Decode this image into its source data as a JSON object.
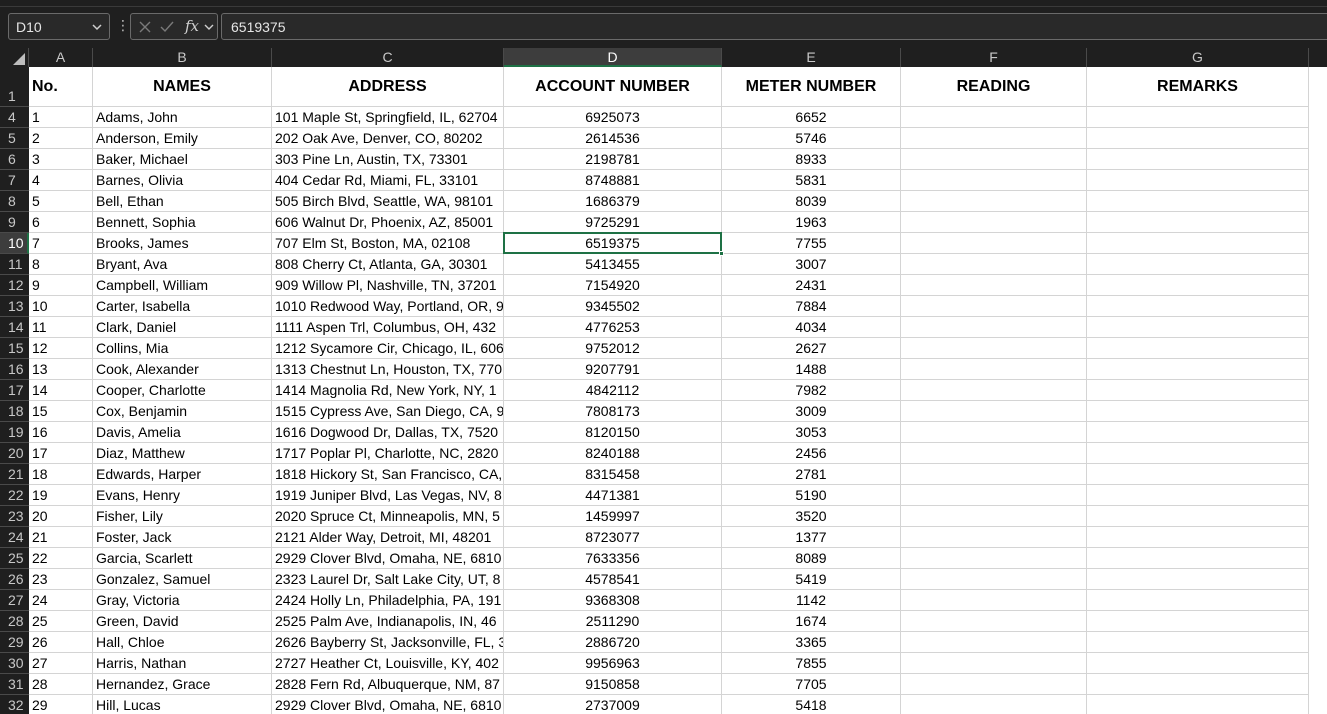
{
  "formula_bar": {
    "name_box": "D10",
    "formula_value": "6519375",
    "fx_label": "fx"
  },
  "columns": [
    "A",
    "B",
    "C",
    "D",
    "E",
    "F",
    "G"
  ],
  "header_row": {
    "row_number": "1",
    "cells": [
      "No.",
      "NAMES",
      "ADDRESS",
      "ACCOUNT NUMBER",
      "METER NUMBER",
      "READING",
      "REMARKS"
    ]
  },
  "rows": [
    {
      "rn": "4",
      "cells": [
        "1",
        "Adams, John",
        "101 Maple St, Springfield, IL, 62704",
        "6925073",
        "6652",
        "",
        ""
      ]
    },
    {
      "rn": "5",
      "cells": [
        "2",
        "Anderson, Emily",
        "202 Oak Ave, Denver, CO, 80202",
        "2614536",
        "5746",
        "",
        ""
      ]
    },
    {
      "rn": "6",
      "cells": [
        "3",
        "Baker, Michael",
        "303 Pine Ln, Austin, TX, 73301",
        "2198781",
        "8933",
        "",
        ""
      ]
    },
    {
      "rn": "7",
      "cells": [
        "4",
        "Barnes, Olivia",
        "404 Cedar Rd, Miami, FL, 33101",
        "8748881",
        "5831",
        "",
        ""
      ]
    },
    {
      "rn": "8",
      "cells": [
        "5",
        "Bell, Ethan",
        "505 Birch Blvd, Seattle, WA, 98101",
        "1686379",
        "8039",
        "",
        ""
      ]
    },
    {
      "rn": "9",
      "cells": [
        "6",
        "Bennett, Sophia",
        "606 Walnut Dr, Phoenix, AZ, 85001",
        "9725291",
        "1963",
        "",
        ""
      ]
    },
    {
      "rn": "10",
      "cells": [
        "7",
        "Brooks, James",
        "707 Elm St, Boston, MA, 02108",
        "6519375",
        "7755",
        "",
        ""
      ]
    },
    {
      "rn": "11",
      "cells": [
        "8",
        "Bryant, Ava",
        "808 Cherry Ct, Atlanta, GA, 30301",
        "5413455",
        "3007",
        "",
        ""
      ]
    },
    {
      "rn": "12",
      "cells": [
        "9",
        "Campbell, William",
        "909 Willow Pl, Nashville, TN, 37201",
        "7154920",
        "2431",
        "",
        ""
      ]
    },
    {
      "rn": "13",
      "cells": [
        "10",
        "Carter, Isabella",
        "1010 Redwood Way, Portland, OR, 9",
        "9345502",
        "7884",
        "",
        ""
      ]
    },
    {
      "rn": "14",
      "cells": [
        "11",
        "Clark, Daniel",
        "1111 Aspen Trl, Columbus, OH, 432",
        "4776253",
        "4034",
        "",
        ""
      ]
    },
    {
      "rn": "15",
      "cells": [
        "12",
        "Collins, Mia",
        "1212 Sycamore Cir, Chicago, IL, 606",
        "9752012",
        "2627",
        "",
        ""
      ]
    },
    {
      "rn": "16",
      "cells": [
        "13",
        "Cook, Alexander",
        "1313 Chestnut Ln, Houston, TX, 770",
        "9207791",
        "1488",
        "",
        ""
      ]
    },
    {
      "rn": "17",
      "cells": [
        "14",
        "Cooper, Charlotte",
        "1414 Magnolia Rd, New York, NY, 1",
        "4842112",
        "7982",
        "",
        ""
      ]
    },
    {
      "rn": "18",
      "cells": [
        "15",
        "Cox, Benjamin",
        "1515 Cypress Ave, San Diego, CA, 9",
        "7808173",
        "3009",
        "",
        ""
      ]
    },
    {
      "rn": "19",
      "cells": [
        "16",
        "Davis, Amelia",
        "1616 Dogwood Dr, Dallas, TX, 7520",
        "8120150",
        "3053",
        "",
        ""
      ]
    },
    {
      "rn": "20",
      "cells": [
        "17",
        "Diaz, Matthew",
        "1717 Poplar Pl, Charlotte, NC, 2820",
        "8240188",
        "2456",
        "",
        ""
      ]
    },
    {
      "rn": "21",
      "cells": [
        "18",
        "Edwards, Harper",
        "1818 Hickory St, San Francisco, CA,",
        "8315458",
        "2781",
        "",
        ""
      ]
    },
    {
      "rn": "22",
      "cells": [
        "19",
        "Evans, Henry",
        "1919 Juniper Blvd, Las Vegas, NV, 8",
        "4471381",
        "5190",
        "",
        ""
      ]
    },
    {
      "rn": "23",
      "cells": [
        "20",
        "Fisher, Lily",
        "2020 Spruce Ct, Minneapolis, MN, 5",
        "1459997",
        "3520",
        "",
        ""
      ]
    },
    {
      "rn": "24",
      "cells": [
        "21",
        "Foster, Jack",
        "2121 Alder Way, Detroit, MI, 48201",
        "8723077",
        "1377",
        "",
        ""
      ]
    },
    {
      "rn": "25",
      "cells": [
        "22",
        "Garcia, Scarlett",
        "2929 Clover Blvd, Omaha, NE, 6810",
        "7633356",
        "8089",
        "",
        ""
      ]
    },
    {
      "rn": "26",
      "cells": [
        "23",
        "Gonzalez, Samuel",
        "2323 Laurel Dr, Salt Lake City, UT, 8",
        "4578541",
        "5419",
        "",
        ""
      ]
    },
    {
      "rn": "27",
      "cells": [
        "24",
        "Gray, Victoria",
        "2424 Holly Ln, Philadelphia, PA, 191",
        "9368308",
        "1142",
        "",
        ""
      ]
    },
    {
      "rn": "28",
      "cells": [
        "25",
        "Green, David",
        "2525 Palm Ave, Indianapolis, IN, 46",
        "2511290",
        "1674",
        "",
        ""
      ]
    },
    {
      "rn": "29",
      "cells": [
        "26",
        "Hall, Chloe",
        "2626 Bayberry St, Jacksonville, FL, 3",
        "2886720",
        "3365",
        "",
        ""
      ]
    },
    {
      "rn": "30",
      "cells": [
        "27",
        "Harris, Nathan",
        "2727 Heather Ct, Louisville, KY, 402",
        "9956963",
        "7855",
        "",
        ""
      ]
    },
    {
      "rn": "31",
      "cells": [
        "28",
        "Hernandez, Grace",
        "2828 Fern Rd, Albuquerque, NM, 87",
        "9150858",
        "7705",
        "",
        ""
      ]
    },
    {
      "rn": "32",
      "cells": [
        "29",
        "Hill, Lucas",
        "2929 Clover Blvd, Omaha, NE, 6810",
        "2737009",
        "5418",
        "",
        ""
      ]
    }
  ],
  "selection": {
    "row": "10",
    "column": "D"
  }
}
